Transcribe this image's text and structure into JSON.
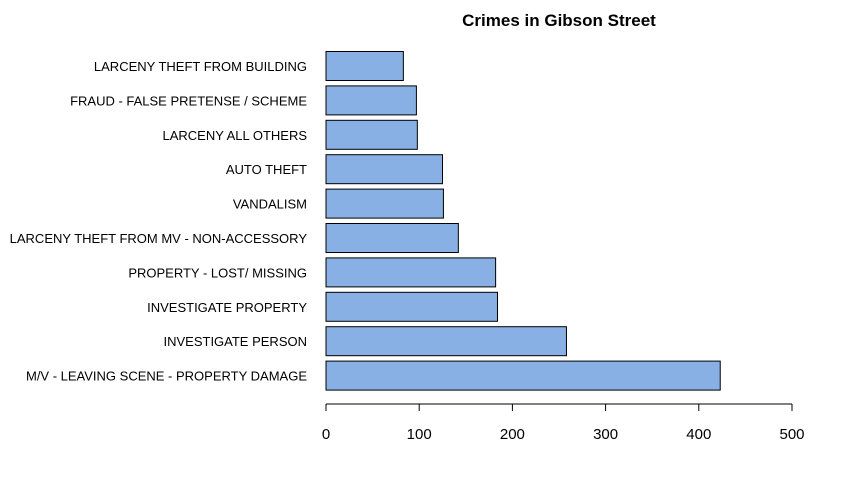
{
  "chart_data": {
    "type": "bar",
    "orientation": "horizontal",
    "title": "Crimes in Gibson Street",
    "xlabel": "",
    "ylabel": "",
    "xlim": [
      0,
      500
    ],
    "ticks": [
      0,
      100,
      200,
      300,
      400,
      500
    ],
    "bar_color": "#88B0E4",
    "grid": false,
    "categories": [
      "LARCENY THEFT FROM BUILDING",
      "FRAUD - FALSE PRETENSE / SCHEME",
      "LARCENY ALL OTHERS",
      "AUTO THEFT",
      "VANDALISM",
      "LARCENY THEFT FROM MV - NON-ACCESSORY",
      "PROPERTY - LOST/ MISSING",
      "INVESTIGATE PROPERTY",
      "INVESTIGATE PERSON",
      "M/V - LEAVING SCENE - PROPERTY DAMAGE"
    ],
    "values": [
      83,
      97,
      98,
      125,
      126,
      142,
      182,
      184,
      258,
      423
    ]
  }
}
